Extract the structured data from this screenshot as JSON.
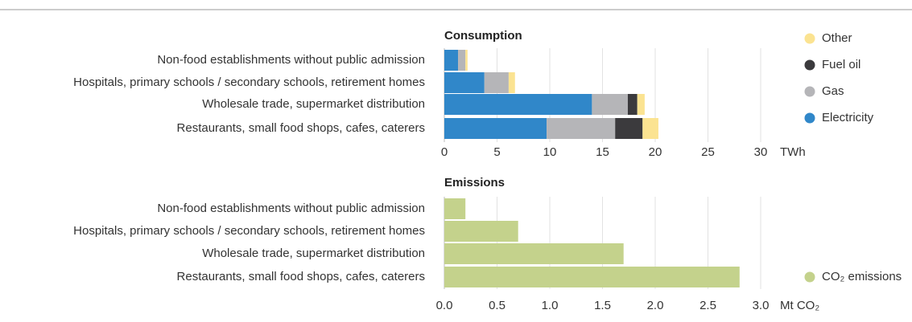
{
  "chart_data": [
    {
      "type": "bar",
      "orientation": "horizontal",
      "stacked": true,
      "title": "Consumption",
      "categories": [
        "Non-food establishments without public admission",
        "Hospitals, primary schools / secondary schools, retirement homes",
        "Wholesale trade, supermarket distribution",
        "Restaurants, small food shops, cafes, caterers"
      ],
      "series": [
        {
          "name": "Electricity",
          "color": "#3087c9",
          "values": [
            1.3,
            3.8,
            14.0,
            9.7
          ]
        },
        {
          "name": "Gas",
          "color": "#b5b5b8",
          "values": [
            0.7,
            2.3,
            3.4,
            6.5
          ]
        },
        {
          "name": "Fuel oil",
          "color": "#3b3a3d",
          "values": [
            0,
            0,
            0.9,
            2.6
          ]
        },
        {
          "name": "Other",
          "color": "#fbe391",
          "values": [
            0.2,
            0.6,
            0.7,
            1.5
          ]
        }
      ],
      "xlim": [
        0,
        30
      ],
      "xticks": [
        0,
        5,
        10,
        15,
        20,
        25,
        30
      ],
      "xlabel": "TWh",
      "grid": true
    },
    {
      "type": "bar",
      "orientation": "horizontal",
      "stacked": false,
      "title": "Emissions",
      "categories": [
        "Non-food establishments without public admission",
        "Hospitals, primary schools / secondary schools, retirement homes",
        "Wholesale trade, supermarket distribution",
        "Restaurants, small food shops, cafes, caterers"
      ],
      "series": [
        {
          "name": "CO₂ emissions",
          "color": "#c4d28c",
          "values": [
            0.2,
            0.7,
            1.7,
            2.8
          ]
        }
      ],
      "xlim": [
        0,
        3
      ],
      "xticks": [
        {
          "value": 0,
          "label": "0.0"
        },
        {
          "value": 0.5,
          "label": "0.5"
        },
        {
          "value": 1,
          "label": "1.0"
        },
        {
          "value": 1.5,
          "label": "1.5"
        },
        {
          "value": 2,
          "label": "2.0"
        },
        {
          "value": 2.5,
          "label": "2.5"
        },
        {
          "value": 3,
          "label": "3.0"
        }
      ],
      "xlabel": "Mt CO₂",
      "grid": true
    }
  ]
}
